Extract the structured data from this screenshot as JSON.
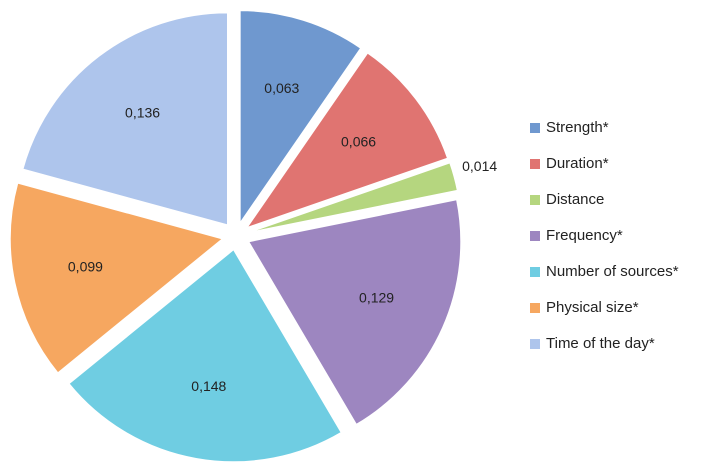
{
  "chart_data": {
    "type": "pie",
    "categories": [
      "Strength*",
      "Duration*",
      "Distance",
      "Frequency*",
      "Number of sources*",
      "Physical size*",
      "Time of the day*"
    ],
    "values": [
      0.063,
      0.066,
      0.014,
      0.129,
      0.148,
      0.099,
      0.136
    ],
    "value_labels": [
      "0,063",
      "0,066",
      "0,014",
      "0,129",
      "0,148",
      "0,099",
      "0,136"
    ],
    "colors": [
      "#6f98cf",
      "#e07471",
      "#b5d67f",
      "#9d86c0",
      "#6fcde2",
      "#f6a760",
      "#aec5ec"
    ],
    "legend": "right"
  }
}
